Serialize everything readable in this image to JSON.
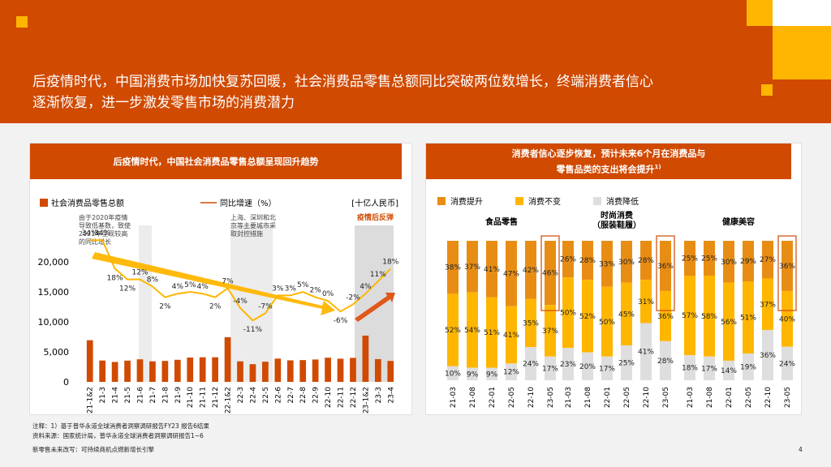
{
  "header": {
    "title_line1": "后疫情时代，中国消费市场加快复苏回暖，社会消费品零售总额同比突破两位数增长，终端消费者信心",
    "title_line2": "逐渐恢复，进一步激发零售市场的消费潜力"
  },
  "colors": {
    "brand_orange": "#d04a02",
    "bar_orange": "#d04a02",
    "line_orange": "#ffb600",
    "consumption_up": "#e88d14",
    "consumption_same": "#ffb600",
    "consumption_down": "#dedede"
  },
  "left_card": {
    "title": "后疫情时代，中国社会消费品零售总额呈现回升趋势",
    "legend_bar": "社会消费品零售总额",
    "legend_line": "同比增速（%）",
    "unit": "[十亿人民币]",
    "annotation_2020": "由于2020年疫情导致低基数，致使2021年呈现较高的同比增长",
    "annotation_shanghai": "上海、深圳和北京等主要城市采取封控措施",
    "annotation_rebound": "疫情后反弹"
  },
  "right_card": {
    "title_line1": "消费者信心逐步恢复，预计未来6个月在消费品与",
    "title_line2": "零售品类的支出将会提升",
    "title_sup": "1)",
    "legend_up": "消费提升",
    "legend_same": "消费不变",
    "legend_down": "消费降低"
  },
  "chart_data": [
    {
      "type": "bar",
      "title": "后疫情时代，中国社会消费品零售总额呈现回升趋势",
      "unit": "[十亿人民币]",
      "categories": [
        "21-1&2",
        "21-3",
        "21-4",
        "21-5",
        "21-6",
        "21-7",
        "21-8",
        "21-9",
        "21-10",
        "21-11",
        "21-12",
        "22-1&2",
        "22-3",
        "22-4",
        "22-5",
        "22-6",
        "22-7",
        "22-8",
        "22-9",
        "22-10",
        "22-11",
        "22-12",
        "23-1&2",
        "23-3",
        "23-4"
      ],
      "ylim": [
        0,
        20000
      ],
      "yticks": [
        "0",
        "5,000",
        "10,000",
        "15,000",
        "20,000"
      ],
      "series": [
        {
          "name": "社会消费品零售总额",
          "kind": "bar",
          "values": [
            6940,
            3560,
            3320,
            3540,
            3760,
            3420,
            3490,
            3680,
            4050,
            4100,
            4100,
            7440,
            3420,
            2950,
            3360,
            3880,
            3590,
            3630,
            3730,
            4030,
            3860,
            4000,
            7710,
            3790,
            3490
          ]
        },
        {
          "name": "同比增速（%）",
          "kind": "line",
          "values": [
            34,
            34,
            18,
            12,
            12,
            8,
            2,
            4,
            5,
            4,
            2,
            7,
            -4,
            -11,
            -7,
            3,
            3,
            5,
            2,
            0,
            -6,
            -2,
            4,
            11,
            18
          ],
          "labels": [
            "34%",
            "34%",
            "18%",
            "12%",
            "12%",
            "8%",
            "2%",
            "4%",
            "5%",
            "4%",
            "2%",
            "7%",
            "-4%",
            "-11%",
            "-7%",
            "3%",
            "3%",
            "5%",
            "2%",
            "0%",
            "-6%",
            "-2%",
            "4%",
            "11%",
            "18%"
          ]
        }
      ]
    },
    {
      "type": "bar",
      "stacked": true,
      "title": "消费者信心逐步恢复，预计未来6个月在消费品与零售品类的支出将会提升",
      "series_names": [
        "消费提升",
        "消费不变",
        "消费降低"
      ],
      "groups": [
        {
          "name": "食品零售",
          "categories": [
            "21-03",
            "21-08",
            "22-01",
            "22-05",
            "22-10",
            "23-05"
          ],
          "up": [
            38,
            37,
            41,
            47,
            42,
            46
          ],
          "same": [
            52,
            54,
            51,
            41,
            35,
            37
          ],
          "down": [
            10,
            9,
            9,
            12,
            24,
            17
          ]
        },
        {
          "name_line1": "时尚消费",
          "name_line2": "（服装鞋履）",
          "categories": [
            "21-03",
            "21-08",
            "22-01",
            "22-05",
            "22-10",
            "23-05"
          ],
          "up": [
            26,
            28,
            33,
            30,
            28,
            36
          ],
          "same": [
            50,
            52,
            50,
            45,
            31,
            36
          ],
          "down": [
            23,
            20,
            17,
            25,
            41,
            28
          ]
        },
        {
          "name": "健康美容",
          "categories": [
            "21-03",
            "21-08",
            "22-01",
            "22-05",
            "22-10",
            "23-05"
          ],
          "up": [
            25,
            25,
            30,
            29,
            27,
            36
          ],
          "same": [
            57,
            58,
            56,
            51,
            37,
            40
          ],
          "down": [
            18,
            17,
            14,
            19,
            36,
            24
          ]
        }
      ]
    }
  ],
  "footer": {
    "note": "注释：1）基于普华永道全球消费者洞察调研报告FY23 报告6结果",
    "source": "资料来源：国家统计局，普华永道全球消费者洞察调研报告1~6",
    "doc": "新零售未来改写：可持续商机点燃新增长引擎",
    "page": "4"
  }
}
